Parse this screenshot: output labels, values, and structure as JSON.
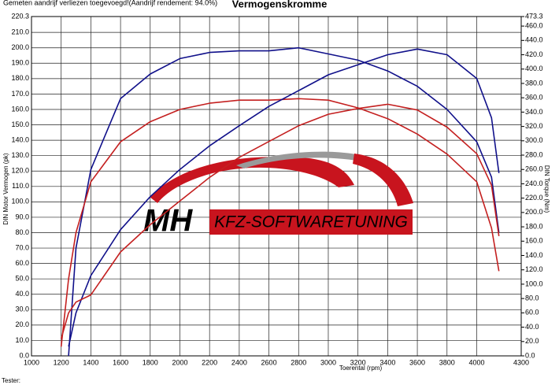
{
  "chart_data": {
    "type": "line",
    "title": "Vermogenskromme",
    "subtitle": "Gemeten aandrijf verliezen toegevoegd!(Aandrijf rendement: 94.0%)",
    "xlabel": "Toerental (rpm)",
    "ylabel": "DIN Motor Vermogen (pk)",
    "y2label": "DIN Torque (Nm)",
    "annotations": [
      "MH",
      "KFZ-SOFTWARETUNING",
      "Tester:"
    ],
    "x": [
      1200,
      1250,
      1300,
      1400,
      1600,
      1800,
      2000,
      2200,
      2400,
      2600,
      2800,
      3000,
      3200,
      3400,
      3600,
      3800,
      4000,
      4100,
      4150
    ],
    "series": [
      {
        "color": "#10108a",
        "values": [
          null,
          0,
          70,
          121,
          167,
          183,
          193,
          197,
          198,
          198,
          200,
          196,
          192,
          185,
          175,
          160,
          139,
          116,
          80
        ]
      },
      {
        "color": "#c42020",
        "values": [
          6,
          50,
          80,
          113,
          139,
          152,
          160,
          164,
          166,
          166,
          167,
          166,
          161,
          154,
          144,
          131,
          113,
          83,
          55
        ]
      },
      {
        "color": "#10108a",
        "axis": "y2",
        "values": [
          null,
          13,
          60,
          112,
          176,
          222,
          260,
          293,
          321,
          348,
          370,
          392,
          406,
          420,
          428,
          420,
          387,
          332,
          255
        ]
      },
      {
        "color": "#c42020",
        "axis": "y2",
        "values": [
          24,
          60,
          75,
          85,
          145,
          183,
          216,
          249,
          277,
          299,
          321,
          337,
          345,
          351,
          343,
          319,
          282,
          238,
          167
        ]
      }
    ],
    "xlim": [
      1000,
      4300
    ],
    "xticks": [
      1000,
      1200,
      1400,
      1600,
      1800,
      2000,
      2200,
      2400,
      2600,
      2800,
      3000,
      3200,
      3400,
      3600,
      3800,
      4000,
      4300
    ],
    "ylim": [
      0,
      220.3
    ],
    "yticks": [
      {
        "value": 0,
        "label": "0.0"
      },
      {
        "value": 10,
        "label": "10.0"
      },
      {
        "value": 20,
        "label": "20.0"
      },
      {
        "value": 30,
        "label": "30.0"
      },
      {
        "value": 40,
        "label": "40.0"
      },
      {
        "value": 50,
        "label": "50.0"
      },
      {
        "value": 60,
        "label": "60.0"
      },
      {
        "value": 70,
        "label": "70.0"
      },
      {
        "value": 80,
        "label": "80.0"
      },
      {
        "value": 90,
        "label": "90.0"
      },
      {
        "value": 100,
        "label": "100.0"
      },
      {
        "value": 110,
        "label": "110.0"
      },
      {
        "value": 120,
        "label": "120.0"
      },
      {
        "value": 130,
        "label": "130.0"
      },
      {
        "value": 140,
        "label": "140.0"
      },
      {
        "value": 150,
        "label": "150.0"
      },
      {
        "value": 160,
        "label": "160.0"
      },
      {
        "value": 170,
        "label": "170.0"
      },
      {
        "value": 180,
        "label": "180.0"
      },
      {
        "value": 190,
        "label": "190.0"
      },
      {
        "value": 200,
        "label": "200.0"
      },
      {
        "value": 210,
        "label": "210.0"
      },
      {
        "value": 220.3,
        "label": "220.3"
      }
    ],
    "y2lim": [
      0,
      473.3
    ],
    "y2ticks": [
      {
        "value": 0,
        "label": "0.0"
      },
      {
        "value": 20,
        "label": "20.0"
      },
      {
        "value": 40,
        "label": "40.0"
      },
      {
        "value": 60,
        "label": "60.0"
      },
      {
        "value": 80,
        "label": "80.0"
      },
      {
        "value": 100,
        "label": "100.0"
      },
      {
        "value": 120,
        "label": "120.0"
      },
      {
        "value": 140,
        "label": "140.0"
      },
      {
        "value": 160,
        "label": "160.0"
      },
      {
        "value": 180,
        "label": "180.0"
      },
      {
        "value": 200,
        "label": "200.0"
      },
      {
        "value": 220,
        "label": "220.0"
      },
      {
        "value": 240,
        "label": "240.0"
      },
      {
        "value": 260,
        "label": "260.0"
      },
      {
        "value": 280,
        "label": "280.0"
      },
      {
        "value": 300,
        "label": "300.0"
      },
      {
        "value": 320,
        "label": "320.0"
      },
      {
        "value": 340,
        "label": "340.0"
      },
      {
        "value": 360,
        "label": "360.0"
      },
      {
        "value": 380,
        "label": "380.0"
      },
      {
        "value": 400,
        "label": "400.0"
      },
      {
        "value": 420,
        "label": "420.0"
      },
      {
        "value": 440,
        "label": "440.0"
      },
      {
        "value": 460,
        "label": "460.0"
      },
      {
        "value": 473.3,
        "label": "473.3"
      }
    ],
    "grid": true
  }
}
